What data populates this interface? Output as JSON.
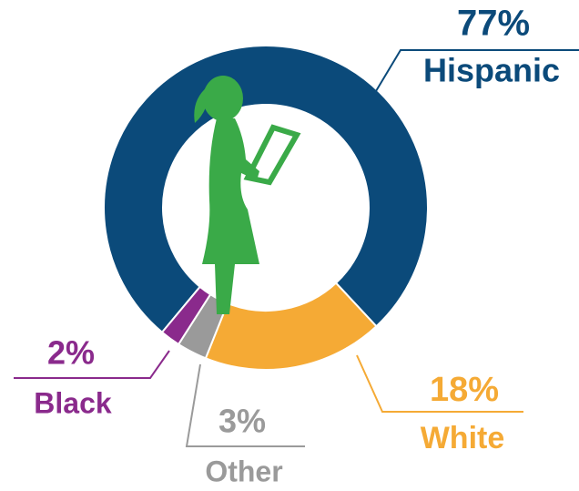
{
  "chart_data": {
    "type": "donut",
    "categories": [
      "Hispanic",
      "White",
      "Other",
      "Black"
    ],
    "values": [
      77,
      18,
      3,
      2
    ],
    "value_labels": [
      "77%",
      "18%",
      "3%",
      "2%"
    ],
    "colors": [
      "#0b4a7a",
      "#f5aa35",
      "#9a9a9a",
      "#8a2a8c"
    ]
  }
}
